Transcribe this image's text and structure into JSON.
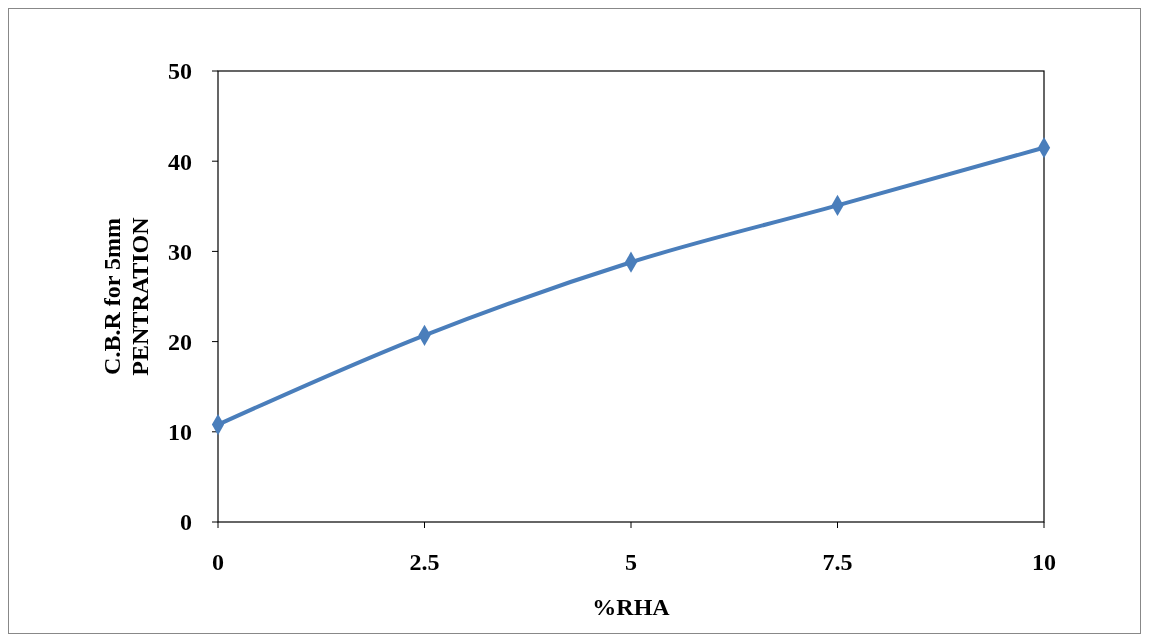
{
  "chart_data": {
    "type": "line",
    "xlabel": "%RHA",
    "ylabel": "C.B.R  for 5mm\nPENTRATION",
    "x": [
      0,
      2.5,
      5,
      7.5,
      10
    ],
    "series": [
      {
        "color": "#4a7ebb",
        "values": [
          10.8,
          20.7,
          28.8,
          35.1,
          41.5
        ]
      }
    ],
    "xlim": [
      0,
      10
    ],
    "xticks": [
      0,
      2.5,
      5,
      7.5,
      10
    ],
    "ylim": [
      0,
      50
    ],
    "yticks": [
      0,
      10,
      20,
      30,
      40,
      50
    ],
    "marker": "diamond",
    "line_style": "solid"
  }
}
